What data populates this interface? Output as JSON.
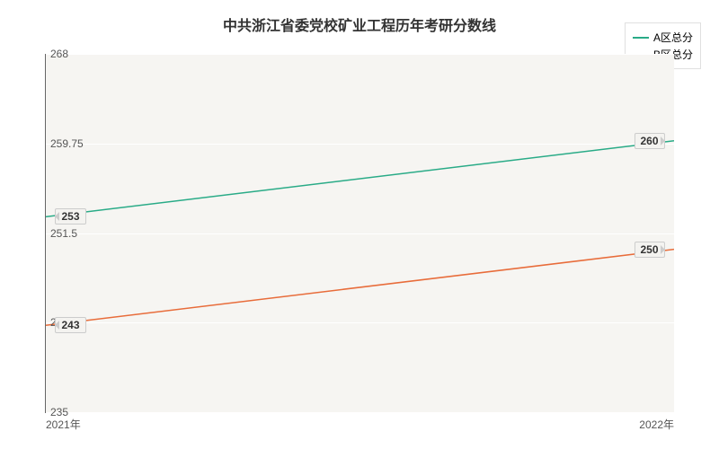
{
  "chart": {
    "type": "line",
    "title": "中共浙江省委党校矿业工程历年考研分数线",
    "title_fontsize": 16,
    "title_color": "#333333",
    "background_color": "#ffffff",
    "plot_background_color": "#f6f5f2",
    "grid_color": "#ffffff",
    "axis_color": "#666666",
    "x": {
      "categories": [
        "2021年",
        "2022年"
      ]
    },
    "y": {
      "min": 235,
      "max": 268,
      "ticks": [
        235,
        243.25,
        251.5,
        259.75,
        268
      ],
      "label_fontsize": 12,
      "label_color": "#555555"
    },
    "series": [
      {
        "name": "A区总分",
        "color": "#29ab87",
        "line_width": 1.5,
        "values": [
          253,
          260
        ]
      },
      {
        "name": "B区总分",
        "color": "#e86c3a",
        "line_width": 1.5,
        "values": [
          243,
          250
        ]
      }
    ],
    "legend": {
      "border_color": "#e0e0e0",
      "fontsize": 12
    },
    "point_labels": [
      {
        "text": "253",
        "side": "left",
        "series": 0,
        "point": 0
      },
      {
        "text": "260",
        "side": "right",
        "series": 0,
        "point": 1
      },
      {
        "text": "243",
        "side": "left",
        "series": 1,
        "point": 0
      },
      {
        "text": "250",
        "side": "right",
        "series": 1,
        "point": 1
      }
    ]
  }
}
